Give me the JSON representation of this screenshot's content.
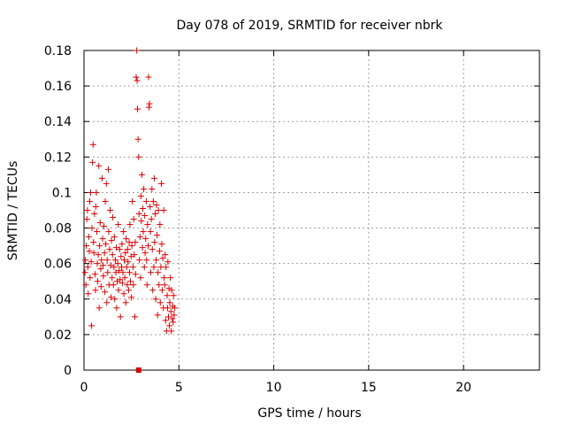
{
  "chart_data": {
    "type": "scatter",
    "title": "Day 078 of 2019, SRMTID for receiver nbrk",
    "xlabel": "GPS time / hours",
    "ylabel": "SRMTID / TECUs",
    "xlim": [
      0,
      24
    ],
    "ylim": [
      0,
      0.18
    ],
    "xticks": [
      0,
      5,
      10,
      15,
      20
    ],
    "xtick_labels": [
      "0",
      "5",
      "10",
      "15",
      "20"
    ],
    "yticks": [
      0,
      0.02,
      0.04,
      0.06,
      0.08,
      0.1,
      0.12,
      0.14,
      0.16,
      0.18
    ],
    "ytick_labels": [
      "0",
      "0.02",
      "0.04",
      "0.06",
      "0.08",
      "0.1",
      "0.12",
      "0.14",
      "0.16",
      "0.18"
    ],
    "grid": true,
    "marker": "+",
    "color": "#dd0000",
    "series": [
      {
        "points": [
          [
            0.05,
            0.055
          ],
          [
            0.08,
            0.062
          ],
          [
            0.1,
            0.048
          ],
          [
            0.12,
            0.07
          ],
          [
            0.15,
            0.085
          ],
          [
            0.18,
            0.09
          ],
          [
            0.2,
            0.058
          ],
          [
            0.22,
            0.043
          ],
          [
            0.25,
            0.075
          ],
          [
            0.28,
            0.067
          ],
          [
            0.3,
            0.095
          ],
          [
            0.32,
            0.052
          ],
          [
            0.35,
            0.1
          ],
          [
            0.38,
            0.061
          ],
          [
            0.4,
            0.025
          ],
          [
            0.42,
            0.08
          ],
          [
            0.45,
            0.117
          ],
          [
            0.48,
            0.127
          ],
          [
            0.5,
            0.072
          ],
          [
            0.52,
            0.066
          ],
          [
            0.55,
            0.088
          ],
          [
            0.58,
            0.054
          ],
          [
            0.6,
            0.045
          ],
          [
            0.62,
            0.092
          ],
          [
            0.65,
            0.1
          ],
          [
            0.68,
            0.078
          ],
          [
            0.7,
            0.06
          ],
          [
            0.72,
            0.05
          ],
          [
            0.75,
            0.065
          ],
          [
            0.78,
            0.115
          ],
          [
            0.8,
            0.035
          ],
          [
            0.82,
            0.07
          ],
          [
            0.85,
            0.083
          ],
          [
            0.88,
            0.057
          ],
          [
            0.9,
            0.047
          ],
          [
            0.92,
            0.062
          ],
          [
            0.95,
            0.108
          ],
          [
            0.98,
            0.074
          ],
          [
            1.0,
            0.059
          ],
          [
            1.02,
            0.053
          ],
          [
            1.05,
            0.081
          ],
          [
            1.08,
            0.066
          ],
          [
            1.1,
            0.044
          ],
          [
            1.12,
            0.095
          ],
          [
            1.15,
            0.071
          ],
          [
            1.18,
            0.105
          ],
          [
            1.2,
            0.038
          ],
          [
            1.22,
            0.062
          ],
          [
            1.25,
            0.055
          ],
          [
            1.28,
            0.113
          ],
          [
            1.3,
            0.078
          ],
          [
            1.32,
            0.048
          ],
          [
            1.35,
            0.068
          ],
          [
            1.38,
            0.09
          ],
          [
            1.4,
            0.059
          ],
          [
            1.42,
            0.041
          ],
          [
            1.45,
            0.073
          ],
          [
            1.48,
            0.052
          ],
          [
            1.5,
            0.065
          ],
          [
            1.52,
            0.086
          ],
          [
            1.55,
            0.048
          ],
          [
            1.58,
            0.058
          ],
          [
            1.6,
            0.075
          ],
          [
            1.62,
            0.04
          ],
          [
            1.65,
            0.062
          ],
          [
            1.68,
            0.055
          ],
          [
            1.7,
            0.069
          ],
          [
            1.72,
            0.035
          ],
          [
            1.75,
            0.05
          ],
          [
            1.78,
            0.06
          ],
          [
            1.8,
            0.082
          ],
          [
            1.82,
            0.045
          ],
          [
            1.85,
            0.056
          ],
          [
            1.88,
            0.068
          ],
          [
            1.9,
            0.051
          ],
          [
            1.92,
            0.03
          ],
          [
            1.95,
            0.064
          ],
          [
            1.98,
            0.058
          ],
          [
            2.0,
            0.071
          ],
          [
            2.02,
            0.049
          ],
          [
            2.05,
            0.055
          ],
          [
            2.08,
            0.078
          ],
          [
            2.1,
            0.043
          ],
          [
            2.12,
            0.062
          ],
          [
            2.15,
            0.052
          ],
          [
            2.18,
            0.066
          ],
          [
            2.2,
            0.038
          ],
          [
            2.22,
            0.074
          ],
          [
            2.25,
            0.058
          ],
          [
            2.28,
            0.048
          ],
          [
            2.3,
            0.068
          ],
          [
            2.32,
            0.061
          ],
          [
            2.35,
            0.045
          ],
          [
            2.38,
            0.072
          ],
          [
            2.4,
            0.055
          ],
          [
            2.42,
            0.082
          ],
          [
            2.45,
            0.05
          ],
          [
            2.48,
            0.064
          ],
          [
            2.5,
            0.041
          ],
          [
            2.52,
            0.07
          ],
          [
            2.55,
            0.095
          ],
          [
            2.58,
            0.058
          ],
          [
            2.6,
            0.048
          ],
          [
            2.62,
            0.085
          ],
          [
            2.65,
            0.065
          ],
          [
            2.68,
            0.03
          ],
          [
            2.7,
            0.072
          ],
          [
            2.72,
            0.054
          ],
          [
            2.75,
            0.165
          ],
          [
            2.78,
            0.18
          ],
          [
            2.8,
            0.163
          ],
          [
            2.82,
            0.147
          ],
          [
            2.85,
            0.13
          ],
          [
            2.88,
            0.12
          ],
          [
            2.9,
            0.088
          ],
          [
            2.92,
            0.062
          ],
          [
            2.95,
            0.075
          ],
          [
            2.98,
            0.052
          ],
          [
            3.0,
            0.098
          ],
          [
            3.02,
            0.084
          ],
          [
            3.05,
            0.11
          ],
          [
            3.08,
            0.069
          ],
          [
            3.1,
            0.091
          ],
          [
            3.12,
            0.078
          ],
          [
            3.15,
            0.102
          ],
          [
            3.18,
            0.058
          ],
          [
            3.2,
            0.087
          ],
          [
            3.22,
            0.066
          ],
          [
            3.25,
            0.074
          ],
          [
            3.28,
            0.095
          ],
          [
            3.3,
            0.062
          ],
          [
            3.32,
            0.048
          ],
          [
            3.35,
            0.082
          ],
          [
            3.38,
            0.07
          ],
          [
            3.4,
            0.165
          ],
          [
            3.42,
            0.148
          ],
          [
            3.45,
            0.15
          ],
          [
            3.48,
            0.092
          ],
          [
            3.5,
            0.078
          ],
          [
            3.52,
            0.055
          ],
          [
            3.55,
            0.085
          ],
          [
            3.58,
            0.102
          ],
          [
            3.6,
            0.068
          ],
          [
            3.62,
            0.045
          ],
          [
            3.65,
            0.095
          ],
          [
            3.68,
            0.058
          ],
          [
            3.7,
            0.108
          ],
          [
            3.72,
            0.072
          ],
          [
            3.75,
            0.088
          ],
          [
            3.78,
            0.04
          ],
          [
            3.8,
            0.062
          ],
          [
            3.82,
            0.093
          ],
          [
            3.85,
            0.076
          ],
          [
            3.88,
            0.031
          ],
          [
            3.9,
            0.055
          ],
          [
            3.92,
            0.09
          ],
          [
            3.95,
            0.048
          ],
          [
            3.98,
            0.067
          ],
          [
            4.0,
            0.082
          ],
          [
            4.02,
            0.038
          ],
          [
            4.05,
            0.058
          ],
          [
            4.08,
            0.105
          ],
          [
            4.1,
            0.071
          ],
          [
            4.12,
            0.045
          ],
          [
            4.15,
            0.063
          ],
          [
            4.18,
            0.035
          ],
          [
            4.2,
            0.09
          ],
          [
            4.22,
            0.052
          ],
          [
            4.25,
            0.048
          ],
          [
            4.28,
            0.065
          ],
          [
            4.3,
            0.028
          ],
          [
            4.32,
            0.058
          ],
          [
            4.35,
            0.022
          ],
          [
            4.38,
            0.042
          ],
          [
            4.4,
            0.035
          ],
          [
            4.42,
            0.061
          ],
          [
            4.45,
            0.03
          ],
          [
            4.48,
            0.046
          ],
          [
            4.5,
            0.025
          ],
          [
            4.52,
            0.038
          ],
          [
            4.55,
            0.052
          ],
          [
            4.58,
            0.033
          ],
          [
            4.6,
            0.022
          ],
          [
            4.62,
            0.045
          ],
          [
            4.65,
            0.029
          ],
          [
            4.68,
            0.036
          ],
          [
            4.7,
            0.027
          ],
          [
            4.72,
            0.042
          ],
          [
            4.75,
            0.031
          ],
          [
            4.78,
            0.035
          ]
        ]
      }
    ],
    "annotation_points": [
      [
        2.88,
        0.0
      ]
    ]
  }
}
